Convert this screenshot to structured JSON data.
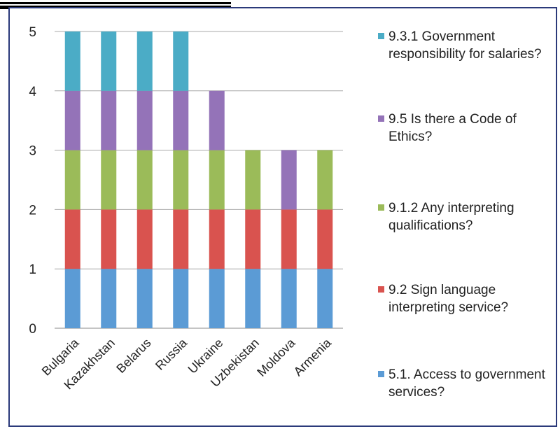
{
  "chart_data": {
    "type": "bar",
    "stacked": true,
    "categories": [
      "Bulgaria",
      "Kazakhstan",
      "Belarus",
      "Russia",
      "Ukraine",
      "Uzbekistan",
      "Moldova",
      "Armenia"
    ],
    "series": [
      {
        "name": "5.1. Access to government services?",
        "color": "#5b9bd5",
        "values": [
          1,
          1,
          1,
          1,
          1,
          1,
          1,
          1
        ]
      },
      {
        "name": "9.2 Sign language interpreting service?",
        "color": "#d9534f",
        "values": [
          1,
          1,
          1,
          1,
          1,
          1,
          1,
          1
        ]
      },
      {
        "name": "9.1.2 Any interpreting qualifications?",
        "color": "#9bbb59",
        "values": [
          1,
          1,
          1,
          1,
          1,
          1,
          0,
          1
        ]
      },
      {
        "name": "9.5 Is there a Code of Ethics?",
        "color": "#9473b8",
        "values": [
          1,
          1,
          1,
          1,
          1,
          0,
          1,
          0
        ]
      },
      {
        "name": "9.3.1 Government responsibility for salaries?",
        "color": "#4bacc6",
        "values": [
          1,
          1,
          1,
          1,
          0,
          0,
          0,
          0
        ]
      }
    ],
    "yticks": [
      0,
      1,
      2,
      3,
      4,
      5
    ],
    "ylim": [
      0,
      5
    ],
    "grid": true,
    "legend_position": "right"
  }
}
